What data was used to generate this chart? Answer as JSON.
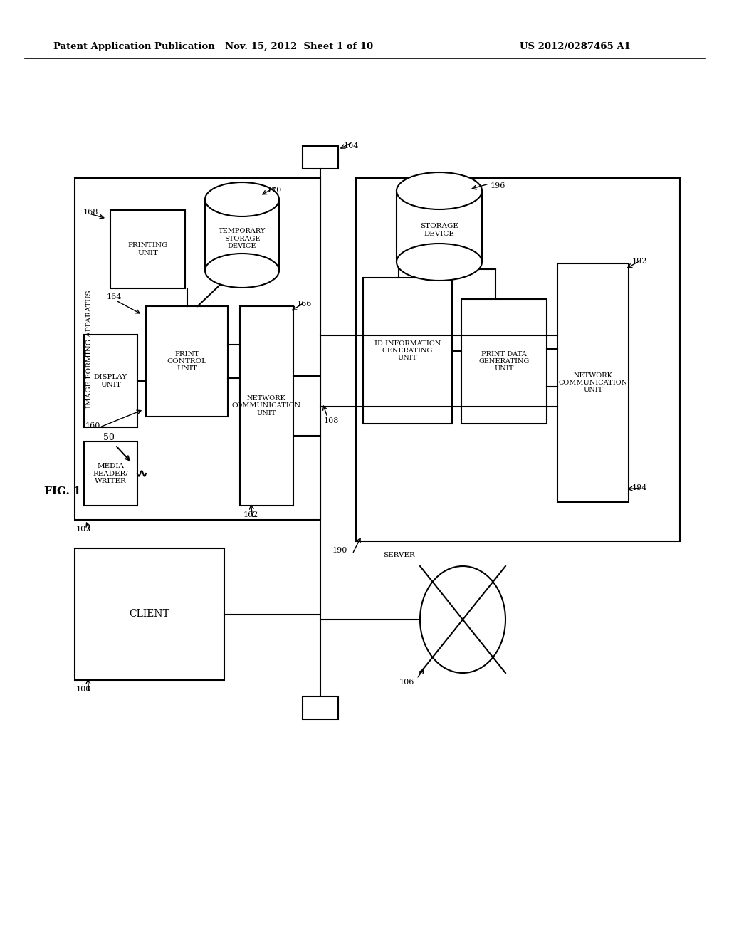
{
  "background_color": "#ffffff",
  "header_left": "Patent Application Publication",
  "header_mid": "Nov. 15, 2012  Sheet 1 of 10",
  "header_right": "US 2012/0287465 A1",
  "fig_label": "FIG. 1",
  "page_width": 10.24,
  "page_height": 13.2,
  "dpi": 100
}
